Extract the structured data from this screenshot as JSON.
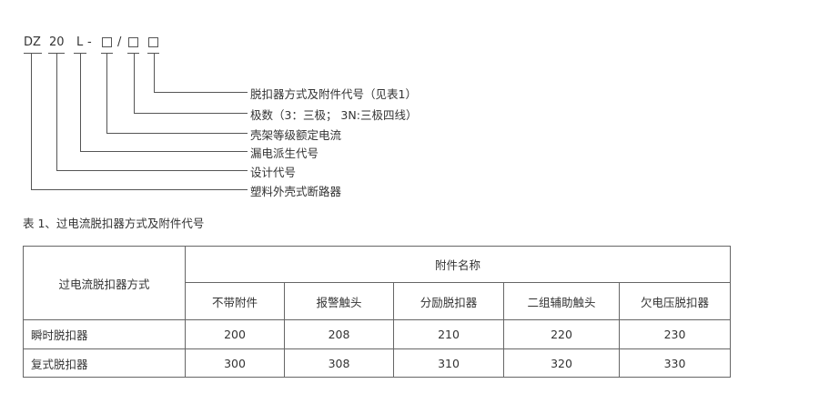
{
  "code": {
    "prefix": "DZ",
    "design": "20",
    "leak": "L",
    "dash": "-",
    "slash": "/"
  },
  "descriptions": [
    "脱扣器方式及附件代号（见表1）",
    "极数（3：三极； 3N:三极四线）",
    "壳架等级额定电流",
    "漏电派生代号",
    "设计代号",
    "塑料外壳式断路器"
  ],
  "table_caption": "表 1、过电流脱扣器方式及附件代号",
  "table": {
    "row_header": "过电流脱扣器方式",
    "group_header": "附件名称",
    "columns": [
      "不带附件",
      "报警触头",
      "分励脱扣器",
      "二组辅助触头",
      "欠电压脱扣器"
    ],
    "rows": [
      {
        "label": "瞬时脱扣器",
        "values": [
          "200",
          "208",
          "210",
          "220",
          "230"
        ]
      },
      {
        "label": "复式脱扣器",
        "values": [
          "300",
          "308",
          "310",
          "320",
          "330"
        ]
      }
    ]
  }
}
